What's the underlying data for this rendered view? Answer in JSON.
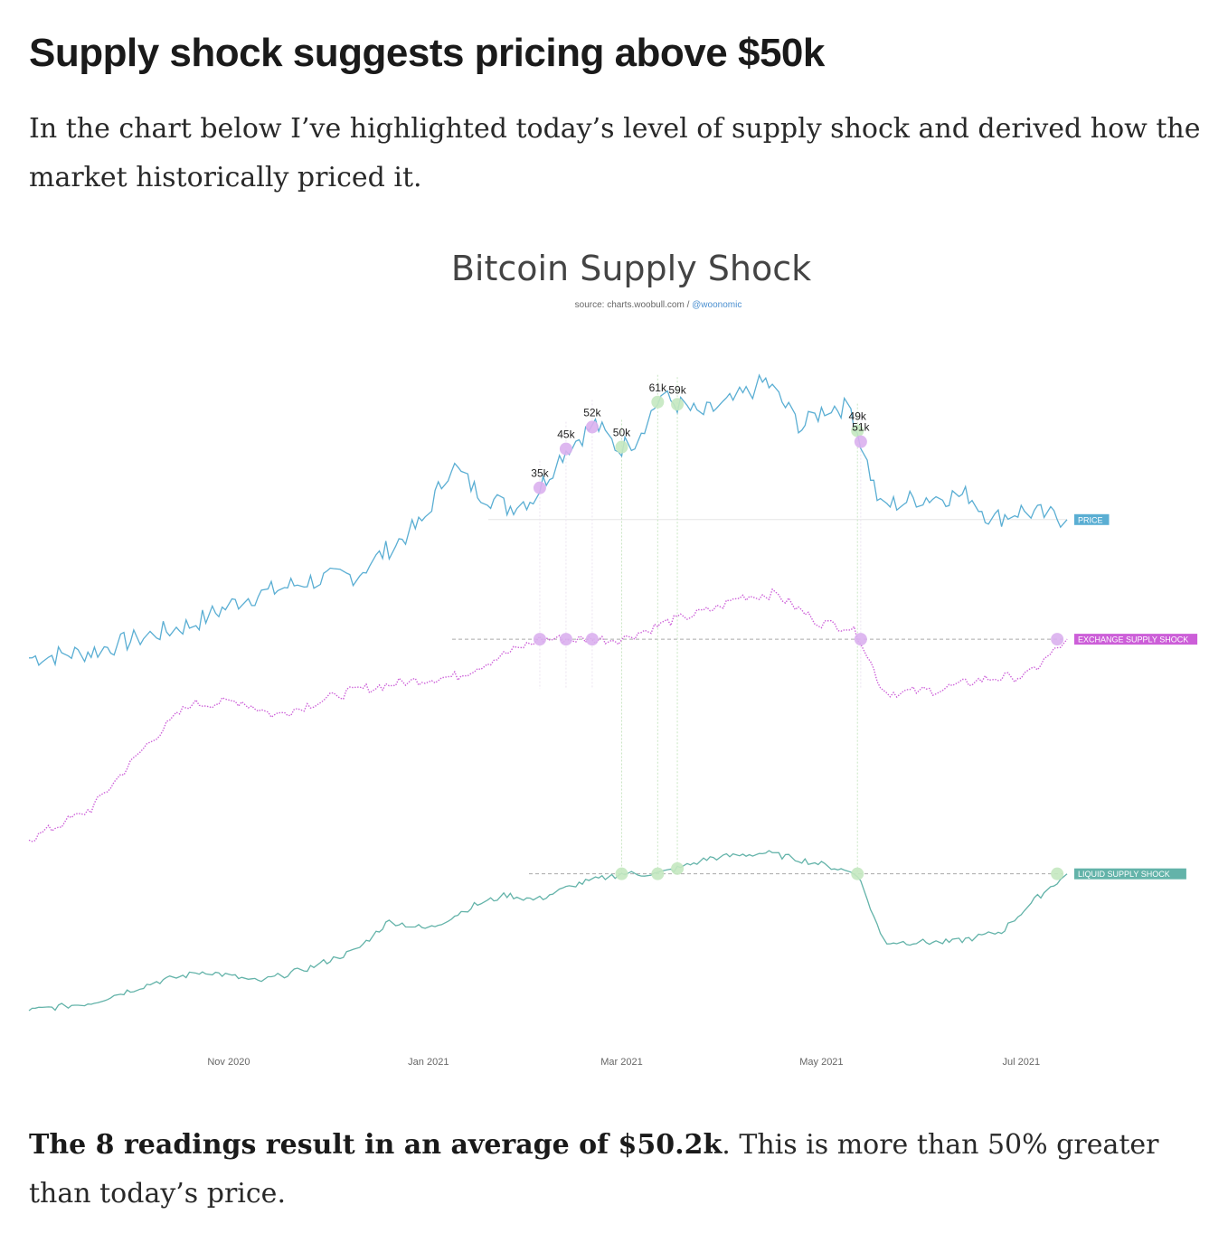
{
  "article": {
    "heading": "Supply shock suggests pricing above $50k",
    "intro": "In the chart below I’ve highlighted today’s level of supply shock and derived how the market historically priced it.",
    "conclusion_bold": "The 8 readings result in an average of $50.2k",
    "conclusion_rest": ". This is more than 50% greater than today’s price."
  },
  "chart_data": {
    "type": "line",
    "title": "Bitcoin Supply Shock",
    "source_prefix": "source: charts.woobull.com / ",
    "source_handle": "@woonomic",
    "x_ticks": [
      "Nov 2020",
      "Jan 2021",
      "Mar 2021",
      "May 2021",
      "Jul 2021"
    ],
    "price_annotations": [
      {
        "date": "2021-02-04",
        "label": "35k",
        "series": "exchange"
      },
      {
        "date": "2021-02-12",
        "label": "45k",
        "series": "exchange"
      },
      {
        "date": "2021-02-20",
        "label": "52k",
        "series": "exchange"
      },
      {
        "date": "2021-03-01",
        "label": "50k",
        "series": "liquid"
      },
      {
        "date": "2021-03-12",
        "label": "61k",
        "series": "liquid"
      },
      {
        "date": "2021-03-18",
        "label": "59k",
        "series": "liquid"
      },
      {
        "date": "2021-05-12",
        "label": "49k",
        "series": "liquid"
      },
      {
        "date": "2021-05-13",
        "label": "51k",
        "series": "exchange"
      }
    ],
    "series": [
      {
        "name": "PRICE",
        "color": "#5aaed3",
        "style": "solid",
        "points": [
          [
            "2020-09-01",
            0.08
          ],
          [
            "2020-09-20",
            0.1
          ],
          [
            "2020-10-10",
            0.16
          ],
          [
            "2020-10-21",
            0.19
          ],
          [
            "2020-11-05",
            0.27
          ],
          [
            "2020-11-25",
            0.33
          ],
          [
            "2020-12-10",
            0.35
          ],
          [
            "2020-12-18",
            0.42
          ],
          [
            "2020-12-30",
            0.52
          ],
          [
            "2021-01-08",
            0.71
          ],
          [
            "2021-01-15",
            0.63
          ],
          [
            "2021-01-25",
            0.57
          ],
          [
            "2021-02-02",
            0.6
          ],
          [
            "2021-02-08",
            0.7
          ],
          [
            "2021-02-12",
            0.76
          ],
          [
            "2021-02-21",
            0.84
          ],
          [
            "2021-02-28",
            0.76
          ],
          [
            "2021-03-05",
            0.79
          ],
          [
            "2021-03-13",
            0.93
          ],
          [
            "2021-03-25",
            0.87
          ],
          [
            "2021-04-05",
            0.92
          ],
          [
            "2021-04-14",
            0.98
          ],
          [
            "2021-04-25",
            0.83
          ],
          [
            "2021-05-03",
            0.9
          ],
          [
            "2021-05-10",
            0.89
          ],
          [
            "2021-05-19",
            0.57
          ],
          [
            "2021-05-30",
            0.6
          ],
          [
            "2021-06-15",
            0.61
          ],
          [
            "2021-06-22",
            0.53
          ],
          [
            "2021-07-01",
            0.56
          ],
          [
            "2021-07-15",
            0.53
          ]
        ]
      },
      {
        "name": "EXCHANGE SUPPLY SHOCK",
        "color": "#cc5ed8",
        "style": "dotted",
        "marker_color": "#dab0ee",
        "points": [
          [
            "2020-09-01",
            0.05
          ],
          [
            "2020-09-20",
            0.16
          ],
          [
            "2020-10-08",
            0.4
          ],
          [
            "2020-10-20",
            0.53
          ],
          [
            "2020-11-05",
            0.54
          ],
          [
            "2020-11-15",
            0.49
          ],
          [
            "2020-12-01",
            0.55
          ],
          [
            "2020-12-10",
            0.58
          ],
          [
            "2020-12-25",
            0.61
          ],
          [
            "2021-01-10",
            0.63
          ],
          [
            "2021-01-25",
            0.71
          ],
          [
            "2021-02-04",
            0.76
          ],
          [
            "2021-02-20",
            0.76
          ],
          [
            "2021-03-01",
            0.76
          ],
          [
            "2021-03-15",
            0.82
          ],
          [
            "2021-03-30",
            0.87
          ],
          [
            "2021-04-06",
            0.91
          ],
          [
            "2021-04-17",
            0.92
          ],
          [
            "2021-04-30",
            0.82
          ],
          [
            "2021-05-10",
            0.8
          ],
          [
            "2021-05-13",
            0.76
          ],
          [
            "2021-05-20",
            0.57
          ],
          [
            "2021-06-05",
            0.58
          ],
          [
            "2021-06-20",
            0.62
          ],
          [
            "2021-07-03",
            0.63
          ],
          [
            "2021-07-15",
            0.76
          ]
        ]
      },
      {
        "name": "LIQUID SUPPLY SHOCK",
        "color": "#63b3a9",
        "style": "solid",
        "marker_color": "#c4e8c0",
        "points": [
          [
            "2020-09-01",
            0.0
          ],
          [
            "2020-09-20",
            0.03
          ],
          [
            "2020-10-10",
            0.11
          ],
          [
            "2020-10-25",
            0.15
          ],
          [
            "2020-11-10",
            0.11
          ],
          [
            "2020-11-25",
            0.16
          ],
          [
            "2020-12-10",
            0.23
          ],
          [
            "2020-12-20",
            0.34
          ],
          [
            "2021-01-01",
            0.31
          ],
          [
            "2021-01-15",
            0.4
          ],
          [
            "2021-01-25",
            0.44
          ],
          [
            "2021-02-03",
            0.42
          ],
          [
            "2021-02-15",
            0.48
          ],
          [
            "2021-03-01",
            0.52
          ],
          [
            "2021-03-12",
            0.52
          ],
          [
            "2021-03-18",
            0.54
          ],
          [
            "2021-03-28",
            0.58
          ],
          [
            "2021-04-14",
            0.6
          ],
          [
            "2021-04-30",
            0.56
          ],
          [
            "2021-05-12",
            0.52
          ],
          [
            "2021-05-20",
            0.26
          ],
          [
            "2021-06-10",
            0.26
          ],
          [
            "2021-06-25",
            0.3
          ],
          [
            "2021-07-05",
            0.42
          ],
          [
            "2021-07-15",
            0.52
          ]
        ]
      }
    ]
  }
}
